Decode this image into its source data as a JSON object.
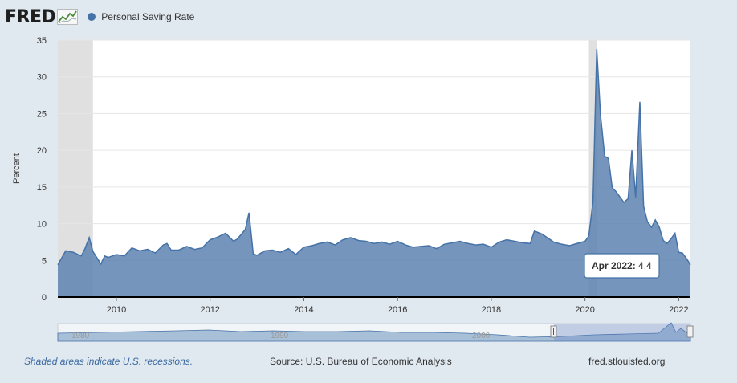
{
  "header": {
    "logo_text": "FRED",
    "series_legend": "Personal Saving Rate",
    "series_color": "#4572a7"
  },
  "footer": {
    "recession_note": "Shaded areas indicate U.S. recessions.",
    "source": "Source: U.S. Bureau of Economic Analysis",
    "site": "fred.stlouisfed.org"
  },
  "tooltip": {
    "label": "Apr 2022:",
    "value": "4.4"
  },
  "navigator": {
    "labels": [
      "1980",
      "1990",
      "2000"
    ]
  },
  "chart_data": {
    "type": "area",
    "title": "Personal Saving Rate",
    "ylabel": "Percent",
    "xlabel": "",
    "ylim": [
      0,
      35
    ],
    "yticks": [
      0,
      5,
      10,
      15,
      20,
      25,
      30,
      35
    ],
    "xticks": [
      {
        "label": "2010",
        "t": 2010.0
      },
      {
        "label": "2012",
        "t": 2012.0
      },
      {
        "label": "2014",
        "t": 2014.0
      },
      {
        "label": "2016",
        "t": 2016.0
      },
      {
        "label": "2018",
        "t": 2018.0
      },
      {
        "label": "2020",
        "t": 2020.0
      },
      {
        "label": "2022",
        "t": 2022.0
      }
    ],
    "xlim": [
      2008.75,
      2022.25
    ],
    "recessions": [
      [
        2008.75,
        2009.5
      ],
      [
        2020.083,
        2020.25
      ]
    ],
    "series": [
      {
        "name": "Personal Saving Rate",
        "color": "#4572a7",
        "t": [
          2008.75,
          2008.92,
          2009.08,
          2009.25,
          2009.33,
          2009.42,
          2009.5,
          2009.67,
          2009.75,
          2009.83,
          2010.0,
          2010.17,
          2010.33,
          2010.5,
          2010.67,
          2010.83,
          2011.0,
          2011.08,
          2011.17,
          2011.33,
          2011.5,
          2011.67,
          2011.83,
          2012.0,
          2012.17,
          2012.33,
          2012.5,
          2012.58,
          2012.75,
          2012.83,
          2012.92,
          2013.0,
          2013.17,
          2013.33,
          2013.5,
          2013.67,
          2013.83,
          2014.0,
          2014.17,
          2014.33,
          2014.5,
          2014.67,
          2014.83,
          2015.0,
          2015.17,
          2015.33,
          2015.5,
          2015.67,
          2015.83,
          2016.0,
          2016.17,
          2016.33,
          2016.5,
          2016.67,
          2016.83,
          2017.0,
          2017.17,
          2017.33,
          2017.5,
          2017.67,
          2017.83,
          2018.0,
          2018.17,
          2018.33,
          2018.5,
          2018.67,
          2018.83,
          2018.92,
          2019.08,
          2019.17,
          2019.33,
          2019.5,
          2019.67,
          2019.83,
          2020.0,
          2020.08,
          2020.17,
          2020.25,
          2020.33,
          2020.42,
          2020.5,
          2020.58,
          2020.67,
          2020.75,
          2020.83,
          2020.92,
          2021.0,
          2021.08,
          2021.17,
          2021.25,
          2021.33,
          2021.42,
          2021.5,
          2021.58,
          2021.67,
          2021.75,
          2021.83,
          2021.92,
          2022.0,
          2022.08,
          2022.17,
          2022.25
        ],
        "values": [
          4.4,
          6.3,
          6.1,
          5.6,
          6.6,
          8.1,
          6.2,
          4.5,
          5.6,
          5.4,
          5.8,
          5.6,
          6.7,
          6.3,
          6.5,
          6.0,
          7.1,
          7.3,
          6.4,
          6.4,
          6.9,
          6.5,
          6.7,
          7.8,
          8.2,
          8.7,
          7.6,
          7.9,
          9.2,
          11.5,
          5.9,
          5.7,
          6.3,
          6.4,
          6.1,
          6.6,
          5.8,
          6.8,
          7.0,
          7.3,
          7.5,
          7.1,
          7.8,
          8.1,
          7.7,
          7.6,
          7.3,
          7.5,
          7.2,
          7.6,
          7.1,
          6.8,
          6.9,
          7.0,
          6.6,
          7.2,
          7.4,
          7.6,
          7.3,
          7.1,
          7.2,
          6.8,
          7.5,
          7.8,
          7.6,
          7.4,
          7.3,
          9.0,
          8.6,
          8.2,
          7.5,
          7.2,
          7.0,
          7.3,
          7.6,
          8.3,
          13.0,
          33.8,
          24.8,
          19.2,
          18.9,
          14.9,
          14.3,
          13.6,
          12.9,
          13.4,
          20.0,
          13.6,
          26.6,
          12.4,
          10.3,
          9.5,
          10.5,
          9.6,
          7.7,
          7.3,
          7.9,
          8.7,
          6.1,
          6.0,
          5.2,
          4.4
        ]
      }
    ]
  }
}
